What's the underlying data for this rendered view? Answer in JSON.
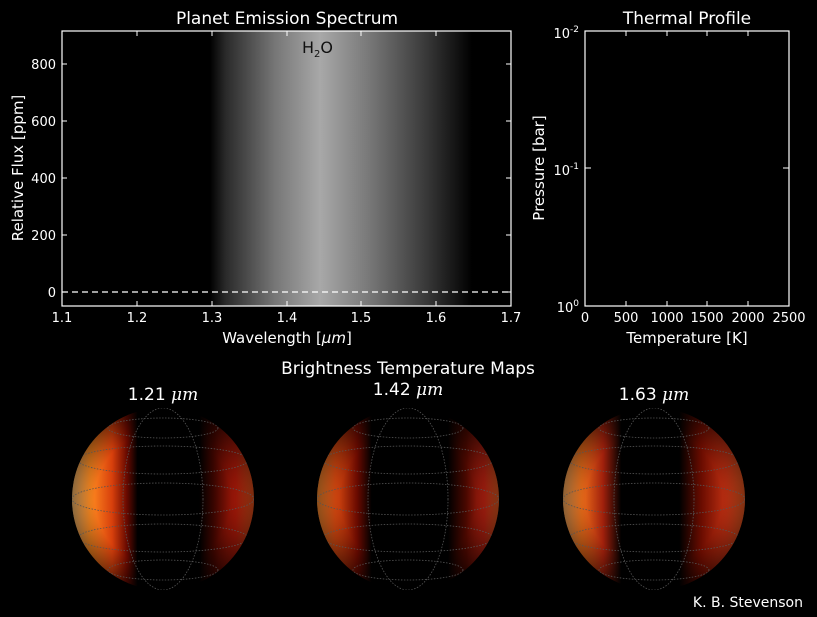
{
  "spectrum_chart": {
    "title": "Planet Emission Spectrum",
    "xlabel": "Wavelength [",
    "xlabel_unit": "μm",
    "ylabel": "Relative Flux [ppm]",
    "band_label": "H",
    "band_label_sub": "2",
    "band_label_suffix": "O",
    "xticks": [
      "1.1",
      "1.2",
      "1.3",
      "1.4",
      "1.5",
      "1.6",
      "1.7"
    ],
    "yticks": [
      "0",
      "200",
      "400",
      "600",
      "800"
    ]
  },
  "thermal_chart": {
    "title": "Thermal Profile",
    "xlabel": "Temperature [K]",
    "ylabel": "Pressure [bar]",
    "xticks": [
      "0",
      "500",
      "1000",
      "1500",
      "2000",
      "2500"
    ],
    "yticks": [
      {
        "base": "10",
        "exp": "-2"
      },
      {
        "base": "10",
        "exp": "-1"
      },
      {
        "base": "10",
        "exp": "0"
      }
    ]
  },
  "maps": {
    "title": "Brightness Temperature Maps",
    "unit": "μm",
    "items": [
      {
        "wavelength": "1.21"
      },
      {
        "wavelength": "1.42"
      },
      {
        "wavelength": "1.63"
      }
    ]
  },
  "credit": "K. B. Stevenson",
  "chart_data": [
    {
      "type": "line",
      "title": "Planet Emission Spectrum",
      "xlabel": "Wavelength [μm]",
      "ylabel": "Relative Flux [ppm]",
      "xlim": [
        1.1,
        1.7
      ],
      "ylim": [
        -50,
        920
      ],
      "series": [],
      "reference_line": {
        "y": 0,
        "style": "dashed"
      },
      "highlight_band": {
        "label": "H2O",
        "x_range": [
          1.3,
          1.65
        ],
        "peak": 1.42
      }
    },
    {
      "type": "line",
      "title": "Thermal Profile",
      "xlabel": "Temperature [K]",
      "ylabel": "Pressure [bar]",
      "xlim": [
        0,
        2500
      ],
      "ylim": [
        1,
        0.01
      ],
      "yscale": "log",
      "series": []
    },
    {
      "type": "heatmap",
      "title": "Brightness Temperature Maps",
      "panels": [
        "1.21 μm",
        "1.42 μm",
        "1.63 μm"
      ]
    }
  ]
}
